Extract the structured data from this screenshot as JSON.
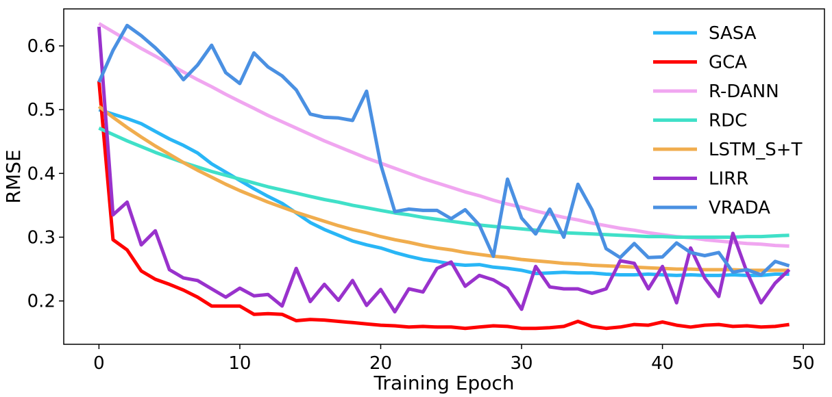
{
  "chart_data": {
    "type": "line",
    "title": "",
    "xlabel": "Training Epoch",
    "ylabel": "RMSE",
    "xlim": [
      -2.5,
      51.5
    ],
    "ylim": [
      0.132,
      0.658
    ],
    "xticks": [
      0,
      10,
      20,
      30,
      40,
      50
    ],
    "yticks": [
      0.2,
      0.3,
      0.4,
      0.5,
      0.6
    ],
    "xtick_labels": [
      "0",
      "10",
      "20",
      "30",
      "40",
      "50"
    ],
    "ytick_labels": [
      "0.2",
      "0.3",
      "0.4",
      "0.5",
      "0.6"
    ],
    "grid": false,
    "legend": "top-right",
    "series": [
      {
        "name": "SASA",
        "color": "#29b6f6",
        "values": [
          0.5,
          0.493,
          0.486,
          0.478,
          0.466,
          0.454,
          0.444,
          0.432,
          0.415,
          0.402,
          0.389,
          0.376,
          0.364,
          0.353,
          0.338,
          0.323,
          0.312,
          0.303,
          0.294,
          0.288,
          0.283,
          0.276,
          0.27,
          0.265,
          0.262,
          0.258,
          0.256,
          0.257,
          0.253,
          0.251,
          0.248,
          0.243,
          0.244,
          0.245,
          0.244,
          0.244,
          0.242,
          0.241,
          0.241,
          0.242,
          0.241,
          0.24,
          0.241,
          0.24,
          0.24,
          0.241,
          0.24,
          0.24,
          0.242,
          0.242
        ]
      },
      {
        "name": "GCA",
        "color": "#ff0000",
        "values": [
          0.545,
          0.296,
          0.28,
          0.247,
          0.234,
          0.226,
          0.217,
          0.206,
          0.192,
          0.192,
          0.192,
          0.179,
          0.18,
          0.179,
          0.169,
          0.171,
          0.17,
          0.168,
          0.166,
          0.164,
          0.162,
          0.161,
          0.159,
          0.16,
          0.159,
          0.159,
          0.157,
          0.159,
          0.161,
          0.16,
          0.157,
          0.157,
          0.158,
          0.16,
          0.168,
          0.16,
          0.157,
          0.159,
          0.163,
          0.162,
          0.167,
          0.162,
          0.159,
          0.162,
          0.163,
          0.16,
          0.161,
          0.159,
          0.16,
          0.163
        ]
      },
      {
        "name": "R-DANN",
        "color": "#f0a6f0",
        "values": [
          0.635,
          0.622,
          0.609,
          0.596,
          0.584,
          0.571,
          0.559,
          0.547,
          0.536,
          0.524,
          0.513,
          0.502,
          0.491,
          0.481,
          0.471,
          0.461,
          0.451,
          0.442,
          0.433,
          0.424,
          0.416,
          0.408,
          0.4,
          0.392,
          0.385,
          0.378,
          0.371,
          0.365,
          0.358,
          0.352,
          0.347,
          0.341,
          0.336,
          0.331,
          0.327,
          0.322,
          0.318,
          0.314,
          0.311,
          0.307,
          0.304,
          0.301,
          0.299,
          0.296,
          0.294,
          0.292,
          0.29,
          0.289,
          0.287,
          0.286
        ]
      },
      {
        "name": "RDC",
        "color": "#40e0c8",
        "values": [
          0.471,
          0.461,
          0.451,
          0.442,
          0.433,
          0.425,
          0.417,
          0.41,
          0.403,
          0.397,
          0.391,
          0.385,
          0.379,
          0.374,
          0.369,
          0.364,
          0.359,
          0.355,
          0.35,
          0.346,
          0.342,
          0.338,
          0.335,
          0.331,
          0.328,
          0.325,
          0.322,
          0.319,
          0.317,
          0.315,
          0.313,
          0.311,
          0.309,
          0.307,
          0.306,
          0.305,
          0.304,
          0.303,
          0.302,
          0.301,
          0.301,
          0.3,
          0.3,
          0.3,
          0.3,
          0.3,
          0.301,
          0.301,
          0.302,
          0.303
        ]
      },
      {
        "name": "LSTM_S+T",
        "color": "#f0ad4e",
        "values": [
          0.505,
          0.488,
          0.472,
          0.457,
          0.443,
          0.43,
          0.417,
          0.405,
          0.394,
          0.383,
          0.373,
          0.364,
          0.355,
          0.347,
          0.339,
          0.332,
          0.325,
          0.318,
          0.312,
          0.307,
          0.301,
          0.296,
          0.292,
          0.287,
          0.283,
          0.28,
          0.276,
          0.273,
          0.27,
          0.268,
          0.265,
          0.263,
          0.261,
          0.259,
          0.258,
          0.256,
          0.255,
          0.254,
          0.253,
          0.252,
          0.251,
          0.25,
          0.25,
          0.249,
          0.249,
          0.249,
          0.248,
          0.248,
          0.248,
          0.248
        ]
      },
      {
        "name": "LIRR",
        "color": "#9932cc",
        "values": [
          0.63,
          0.335,
          0.355,
          0.288,
          0.31,
          0.249,
          0.236,
          0.232,
          0.219,
          0.206,
          0.22,
          0.208,
          0.21,
          0.192,
          0.251,
          0.199,
          0.226,
          0.201,
          0.232,
          0.193,
          0.218,
          0.183,
          0.219,
          0.214,
          0.251,
          0.261,
          0.223,
          0.24,
          0.233,
          0.22,
          0.187,
          0.254,
          0.222,
          0.219,
          0.219,
          0.212,
          0.219,
          0.263,
          0.259,
          0.219,
          0.254,
          0.197,
          0.283,
          0.236,
          0.207,
          0.306,
          0.245,
          0.197,
          0.228,
          0.249
        ]
      },
      {
        "name": "VRADA",
        "color": "#4a90e2",
        "values": [
          0.543,
          0.593,
          0.632,
          0.616,
          0.597,
          0.575,
          0.547,
          0.57,
          0.601,
          0.558,
          0.541,
          0.589,
          0.567,
          0.553,
          0.531,
          0.493,
          0.488,
          0.487,
          0.483,
          0.529,
          0.414,
          0.34,
          0.344,
          0.342,
          0.342,
          0.329,
          0.343,
          0.319,
          0.27,
          0.391,
          0.33,
          0.305,
          0.344,
          0.3,
          0.383,
          0.343,
          0.282,
          0.268,
          0.29,
          0.268,
          0.269,
          0.291,
          0.276,
          0.271,
          0.276,
          0.245,
          0.249,
          0.241,
          0.262,
          0.255
        ]
      }
    ]
  }
}
